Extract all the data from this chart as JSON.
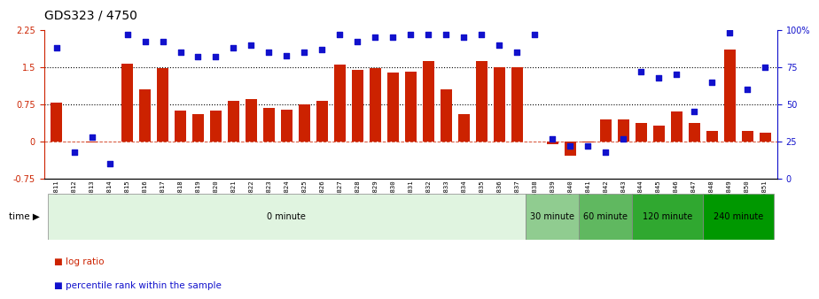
{
  "title": "GDS323 / 4750",
  "samples": [
    "GSM5811",
    "GSM5812",
    "GSM5813",
    "GSM5814",
    "GSM5815",
    "GSM5816",
    "GSM5817",
    "GSM5818",
    "GSM5819",
    "GSM5820",
    "GSM5821",
    "GSM5822",
    "GSM5823",
    "GSM5824",
    "GSM5825",
    "GSM5826",
    "GSM5827",
    "GSM5828",
    "GSM5829",
    "GSM5830",
    "GSM5831",
    "GSM5832",
    "GSM5833",
    "GSM5834",
    "GSM5835",
    "GSM5836",
    "GSM5837",
    "GSM5838",
    "GSM5839",
    "GSM5840",
    "GSM5841",
    "GSM5842",
    "GSM5843",
    "GSM5844",
    "GSM5845",
    "GSM5846",
    "GSM5847",
    "GSM5848",
    "GSM5849",
    "GSM5850",
    "GSM5851"
  ],
  "log_ratio": [
    0.78,
    0.0,
    -0.02,
    0.0,
    1.58,
    1.05,
    1.48,
    0.62,
    0.55,
    0.62,
    0.82,
    0.85,
    0.68,
    0.65,
    0.75,
    0.82,
    1.55,
    1.45,
    1.48,
    1.4,
    1.42,
    1.62,
    1.05,
    0.55,
    1.62,
    1.5,
    1.5,
    0.0,
    -0.05,
    -0.28,
    -0.02,
    0.45,
    0.45,
    0.38,
    0.32,
    0.6,
    0.38,
    0.22,
    1.85,
    0.22,
    0.18
  ],
  "percentile_rank": [
    88,
    18,
    28,
    10,
    97,
    92,
    92,
    85,
    82,
    82,
    88,
    90,
    85,
    83,
    85,
    87,
    97,
    92,
    95,
    95,
    97,
    97,
    97,
    95,
    97,
    90,
    85,
    97,
    27,
    22,
    22,
    18,
    27,
    72,
    68,
    70,
    45,
    65,
    98,
    60,
    75
  ],
  "time_groups": [
    {
      "label": "0 minute",
      "start": 0,
      "end": 27,
      "color": "#e0f4e0"
    },
    {
      "label": "30 minute",
      "start": 27,
      "end": 30,
      "color": "#90cc90"
    },
    {
      "label": "60 minute",
      "start": 30,
      "end": 33,
      "color": "#60b860"
    },
    {
      "label": "120 minute",
      "start": 33,
      "end": 37,
      "color": "#30a830"
    },
    {
      "label": "240 minute",
      "start": 37,
      "end": 41,
      "color": "#009800"
    }
  ],
  "bar_color": "#cc2200",
  "dot_color": "#1111cc",
  "ylim_left": [
    -0.75,
    2.25
  ],
  "ylim_right": [
    0,
    100
  ],
  "yticks_left": [
    -0.75,
    0.0,
    0.75,
    1.5,
    2.25
  ],
  "yticks_right": [
    0,
    25,
    50,
    75,
    100
  ],
  "hlines": [
    0.75,
    1.5
  ],
  "background_color": "#ffffff",
  "title_fontsize": 10,
  "tick_fontsize": 7,
  "label_fontsize": 7.5
}
